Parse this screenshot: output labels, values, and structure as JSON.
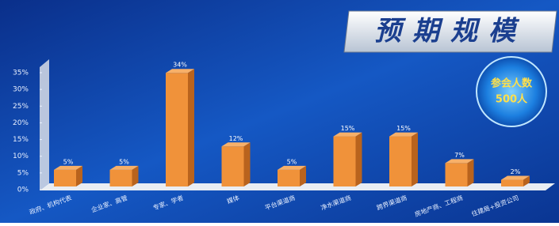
{
  "chart_data": {
    "type": "bar",
    "title": "预期规模",
    "badge": {
      "label": "参会人数",
      "value": "500人"
    },
    "categories": [
      "政府、机构代表",
      "企业家、高管",
      "专家、学者",
      "媒体",
      "平台渠道商",
      "净水渠道商",
      "跨界渠道商",
      "房地产商、工程商",
      "住建局+投资公司"
    ],
    "values": [
      5,
      5,
      34,
      12,
      5,
      15,
      15,
      7,
      2
    ],
    "value_labels": [
      "5%",
      "5%",
      "34%",
      "12%",
      "5%",
      "15%",
      "15%",
      "7%",
      "2%"
    ],
    "color": "#f0923a",
    "ylim": [
      0,
      35
    ],
    "yticks": [
      {
        "value": 0,
        "label": "0%"
      },
      {
        "value": 5,
        "label": "5%"
      },
      {
        "value": 10,
        "label": "10%"
      },
      {
        "value": 15,
        "label": "15%"
      },
      {
        "value": 20,
        "label": "20%"
      },
      {
        "value": 25,
        "label": "25%"
      },
      {
        "value": 30,
        "label": "30%"
      },
      {
        "value": 35,
        "label": "35%"
      }
    ]
  }
}
